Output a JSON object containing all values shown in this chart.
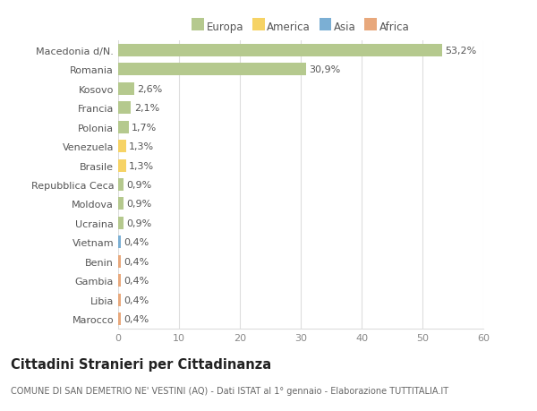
{
  "categories": [
    "Marocco",
    "Libia",
    "Gambia",
    "Benin",
    "Vietnam",
    "Ucraina",
    "Moldova",
    "Repubblica Ceca",
    "Brasile",
    "Venezuela",
    "Polonia",
    "Francia",
    "Kosovo",
    "Romania",
    "Macedonia d/N."
  ],
  "values": [
    0.4,
    0.4,
    0.4,
    0.4,
    0.4,
    0.9,
    0.9,
    0.9,
    1.3,
    1.3,
    1.7,
    2.1,
    2.6,
    30.9,
    53.2
  ],
  "labels": [
    "0,4%",
    "0,4%",
    "0,4%",
    "0,4%",
    "0,4%",
    "0,9%",
    "0,9%",
    "0,9%",
    "1,3%",
    "1,3%",
    "1,7%",
    "2,1%",
    "2,6%",
    "30,9%",
    "53,2%"
  ],
  "colors": [
    "#e8a87c",
    "#e8a87c",
    "#e8a87c",
    "#e8a87c",
    "#7bafd4",
    "#b5c98e",
    "#b5c98e",
    "#b5c98e",
    "#f6d365",
    "#f6d365",
    "#b5c98e",
    "#b5c98e",
    "#b5c98e",
    "#b5c98e",
    "#b5c98e"
  ],
  "legend_labels": [
    "Europa",
    "America",
    "Asia",
    "Africa"
  ],
  "legend_colors": [
    "#b5c98e",
    "#f6d365",
    "#7bafd4",
    "#e8a87c"
  ],
  "xlim": [
    0,
    60
  ],
  "xticks": [
    0,
    10,
    20,
    30,
    40,
    50,
    60
  ],
  "title": "Cittadini Stranieri per Cittadinanza",
  "subtitle": "COMUNE DI SAN DEMETRIO NE' VESTINI (AQ) - Dati ISTAT al 1° gennaio - Elaborazione TUTTITALIA.IT",
  "bg_color": "#ffffff",
  "plot_bg_color": "#ffffff",
  "grid_color": "#dddddd",
  "bar_height": 0.65,
  "label_fontsize": 8,
  "tick_fontsize": 8,
  "title_fontsize": 10.5,
  "subtitle_fontsize": 7
}
